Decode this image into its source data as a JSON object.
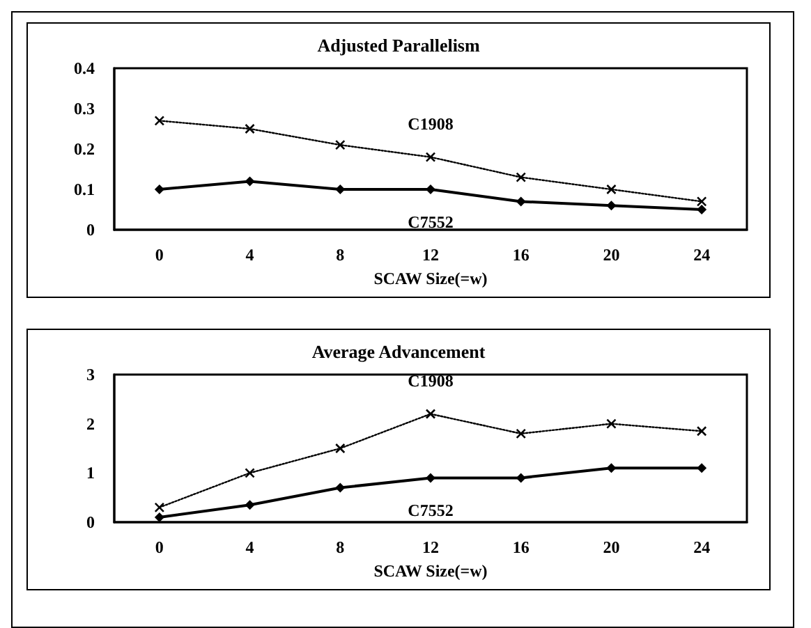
{
  "chart_data": [
    {
      "type": "line",
      "title": "Adjusted Parallelism",
      "xlabel": "SCAW Size(=w)",
      "categories": [
        "0",
        "4",
        "8",
        "12",
        "16",
        "20",
        "24"
      ],
      "ylim": [
        0,
        0.4
      ],
      "yticks": [
        0,
        0.1,
        0.2,
        0.3,
        0.4
      ],
      "grid": false,
      "legend": false,
      "series": [
        {
          "name": "C1908",
          "color": "#000000",
          "marker": "cross",
          "line_style": "dotted",
          "values": [
            0.27,
            0.25,
            0.21,
            0.18,
            0.13,
            0.1,
            0.07
          ]
        },
        {
          "name": "C7552",
          "color": "#000000",
          "marker": "diamond",
          "line_style": "solid",
          "values": [
            0.1,
            0.12,
            0.1,
            0.1,
            0.07,
            0.06,
            0.05
          ]
        }
      ]
    },
    {
      "type": "line",
      "title": "Average Advancement",
      "xlabel": "SCAW Size(=w)",
      "categories": [
        "0",
        "4",
        "8",
        "12",
        "16",
        "20",
        "24"
      ],
      "ylim": [
        0,
        3
      ],
      "yticks": [
        0,
        1,
        2,
        3
      ],
      "grid": false,
      "legend": false,
      "series": [
        {
          "name": "C1908",
          "color": "#000000",
          "marker": "cross",
          "line_style": "dotted",
          "values": [
            0.3,
            1.0,
            1.5,
            2.2,
            1.8,
            2.0,
            1.85
          ]
        },
        {
          "name": "C7552",
          "color": "#000000",
          "marker": "diamond",
          "line_style": "solid",
          "values": [
            0.1,
            0.35,
            0.7,
            0.9,
            0.9,
            1.1,
            1.1
          ]
        }
      ]
    }
  ]
}
